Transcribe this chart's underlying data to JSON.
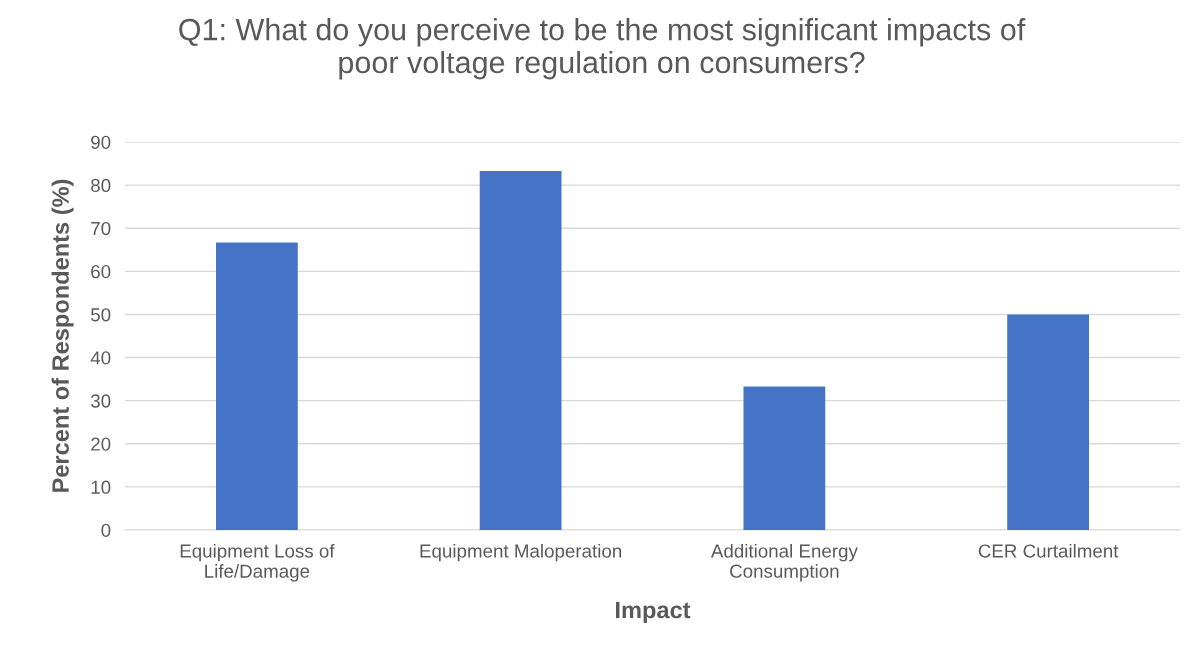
{
  "chart_data": {
    "type": "bar",
    "title": "Q1: What do you perceive to be the most significant impacts of\npoor voltage regulation on consumers?",
    "xlabel": "Impact",
    "ylabel": "Percent of Respondents (%)",
    "categories": [
      "Equipment Loss of\nLife/Damage",
      "Equipment Maloperation",
      "Additional Energy\nConsumption",
      "CER Curtailment"
    ],
    "values": [
      66.7,
      83.3,
      33.3,
      50
    ],
    "color": "#4472c4",
    "ylim": [
      0,
      90
    ],
    "yticks": [
      0,
      10,
      20,
      30,
      40,
      50,
      60,
      70,
      80,
      90
    ],
    "grid": "y",
    "legend": false
  }
}
